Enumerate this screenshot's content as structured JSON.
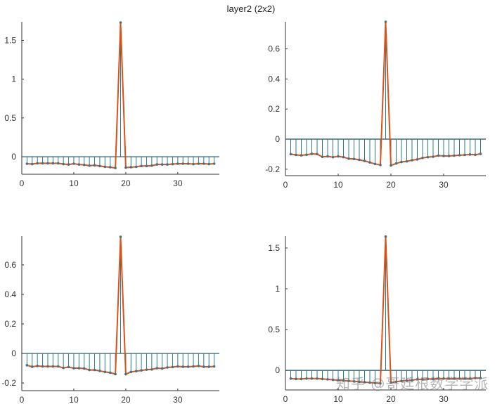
{
  "title": "layer2 (2x2)",
  "watermark": "知乎 @哥廷根数学学派",
  "colors": {
    "stem": "#2b7a8c",
    "line": "#d95319",
    "marker": "#4a6f80",
    "axis": "#333333"
  },
  "chart_data": [
    {
      "type": "stem",
      "position": "top-left",
      "xlim": [
        0,
        38
      ],
      "ylim": [
        -0.226,
        1.74
      ],
      "xticks": [
        0,
        10,
        20,
        30
      ],
      "yticks": [
        0,
        0.5,
        1,
        1.5
      ],
      "grid": false,
      "x": [
        1,
        2,
        3,
        4,
        5,
        6,
        7,
        8,
        9,
        10,
        11,
        12,
        13,
        14,
        15,
        16,
        17,
        18,
        19,
        20,
        21,
        22,
        23,
        24,
        25,
        26,
        27,
        28,
        29,
        30,
        31,
        32,
        33,
        34,
        35,
        36,
        37
      ],
      "values": [
        -0.09,
        -0.095,
        -0.085,
        -0.085,
        -0.085,
        -0.085,
        -0.085,
        -0.095,
        -0.1,
        -0.09,
        -0.1,
        -0.105,
        -0.115,
        -0.11,
        -0.12,
        -0.13,
        -0.135,
        -0.145,
        1.73,
        -0.14,
        -0.135,
        -0.13,
        -0.12,
        -0.12,
        -0.115,
        -0.1,
        -0.1,
        -0.1,
        -0.095,
        -0.09,
        -0.09,
        -0.09,
        -0.095,
        -0.09,
        -0.09,
        -0.095,
        -0.09
      ]
    },
    {
      "type": "stem",
      "position": "top-right",
      "xlim": [
        0,
        38
      ],
      "ylim": [
        -0.243,
        0.78
      ],
      "xticks": [
        0,
        10,
        20,
        30
      ],
      "yticks": [
        -0.2,
        0,
        0.2,
        0.4,
        0.6
      ],
      "grid": false,
      "x": [
        1,
        2,
        3,
        4,
        5,
        6,
        7,
        8,
        9,
        10,
        11,
        12,
        13,
        14,
        15,
        16,
        17,
        18,
        19,
        20,
        21,
        22,
        23,
        24,
        25,
        26,
        27,
        28,
        29,
        30,
        31,
        32,
        33,
        34,
        35,
        36,
        37
      ],
      "values": [
        -0.1,
        -0.105,
        -0.108,
        -0.104,
        -0.098,
        -0.1,
        -0.118,
        -0.115,
        -0.12,
        -0.115,
        -0.12,
        -0.13,
        -0.132,
        -0.138,
        -0.145,
        -0.155,
        -0.165,
        -0.172,
        0.78,
        -0.175,
        -0.162,
        -0.152,
        -0.148,
        -0.14,
        -0.135,
        -0.125,
        -0.12,
        -0.117,
        -0.11,
        -0.112,
        -0.112,
        -0.11,
        -0.107,
        -0.105,
        -0.102,
        -0.104,
        -0.098
      ]
    },
    {
      "type": "stem",
      "position": "bottom-left",
      "xlim": [
        0,
        38
      ],
      "ylim": [
        -0.252,
        0.795
      ],
      "xticks": [
        0,
        10,
        20,
        30
      ],
      "yticks": [
        -0.2,
        0,
        0.2,
        0.4,
        0.6
      ],
      "grid": false,
      "x": [
        1,
        2,
        3,
        4,
        5,
        6,
        7,
        8,
        9,
        10,
        11,
        12,
        13,
        14,
        15,
        16,
        17,
        18,
        19,
        20,
        21,
        22,
        23,
        24,
        25,
        26,
        27,
        28,
        29,
        30,
        31,
        32,
        33,
        34,
        35,
        36,
        37
      ],
      "values": [
        -0.08,
        -0.09,
        -0.085,
        -0.088,
        -0.088,
        -0.088,
        -0.088,
        -0.098,
        -0.092,
        -0.1,
        -0.1,
        -0.102,
        -0.112,
        -0.112,
        -0.118,
        -0.125,
        -0.13,
        -0.14,
        0.79,
        -0.14,
        -0.125,
        -0.12,
        -0.115,
        -0.11,
        -0.108,
        -0.1,
        -0.102,
        -0.095,
        -0.092,
        -0.088,
        -0.09,
        -0.09,
        -0.088,
        -0.085,
        -0.09,
        -0.09,
        -0.088
      ]
    },
    {
      "type": "stem",
      "position": "bottom-right",
      "xlim": [
        0,
        38
      ],
      "ylim": [
        -0.24,
        1.646
      ],
      "xticks": [
        0,
        10,
        20,
        30
      ],
      "yticks": [
        0,
        0.5,
        1,
        1.5
      ],
      "grid": false,
      "x": [
        1,
        2,
        3,
        4,
        5,
        6,
        7,
        8,
        9,
        10,
        11,
        12,
        13,
        14,
        15,
        16,
        17,
        18,
        19,
        20,
        21,
        22,
        23,
        24,
        25,
        26,
        27,
        28,
        29,
        30,
        31,
        32,
        33,
        34,
        35,
        36,
        37
      ],
      "values": [
        -0.1,
        -0.105,
        -0.105,
        -0.1,
        -0.1,
        -0.1,
        -0.105,
        -0.11,
        -0.115,
        -0.12,
        -0.125,
        -0.13,
        -0.135,
        -0.14,
        -0.145,
        -0.15,
        -0.155,
        -0.16,
        1.64,
        -0.15,
        -0.14,
        -0.13,
        -0.125,
        -0.12,
        -0.11,
        -0.11,
        -0.105,
        -0.105,
        -0.1,
        -0.1,
        -0.1,
        -0.1,
        -0.1,
        -0.1,
        -0.1,
        -0.095,
        -0.095
      ]
    }
  ]
}
